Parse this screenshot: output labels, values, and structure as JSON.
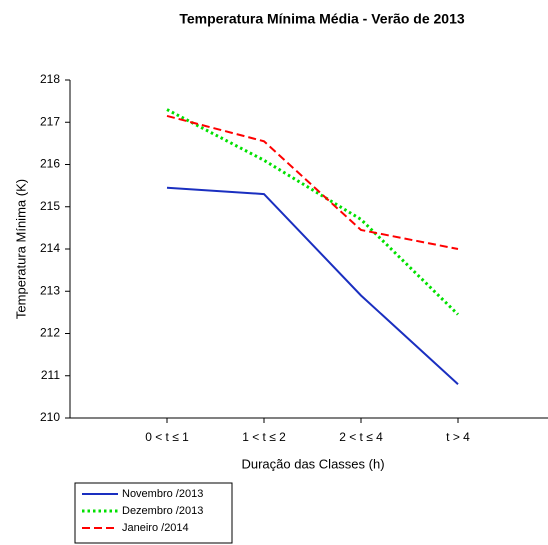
{
  "chart_data": {
    "type": "line",
    "title": "Temperatura Mínima Média - Verão de 2013",
    "x_label": "Duração das Classes (h)",
    "y_label": "Temperatura Mínima (K)",
    "categories": [
      "0 < t ≤ 1",
      "1 < t ≤ 2",
      "2 < t ≤ 4",
      "t > 4"
    ],
    "ylim": [
      210,
      218
    ],
    "yticks": [
      210,
      211,
      212,
      213,
      214,
      215,
      216,
      217,
      218
    ],
    "legend": "bottom-left",
    "series": [
      {
        "name": "Novembro /2013",
        "color": "#1a2fc0",
        "line_style": "solid",
        "values": [
          215.45,
          215.3,
          212.9,
          210.8
        ]
      },
      {
        "name": "Dezembro /2013",
        "color": "#00e000",
        "line_style": "dotted",
        "values": [
          217.3,
          216.1,
          214.7,
          212.45
        ]
      },
      {
        "name": "Janeiro /2014",
        "color": "#ff0000",
        "line_style": "dashed",
        "values": [
          217.15,
          216.55,
          214.45,
          214.0
        ]
      }
    ]
  }
}
